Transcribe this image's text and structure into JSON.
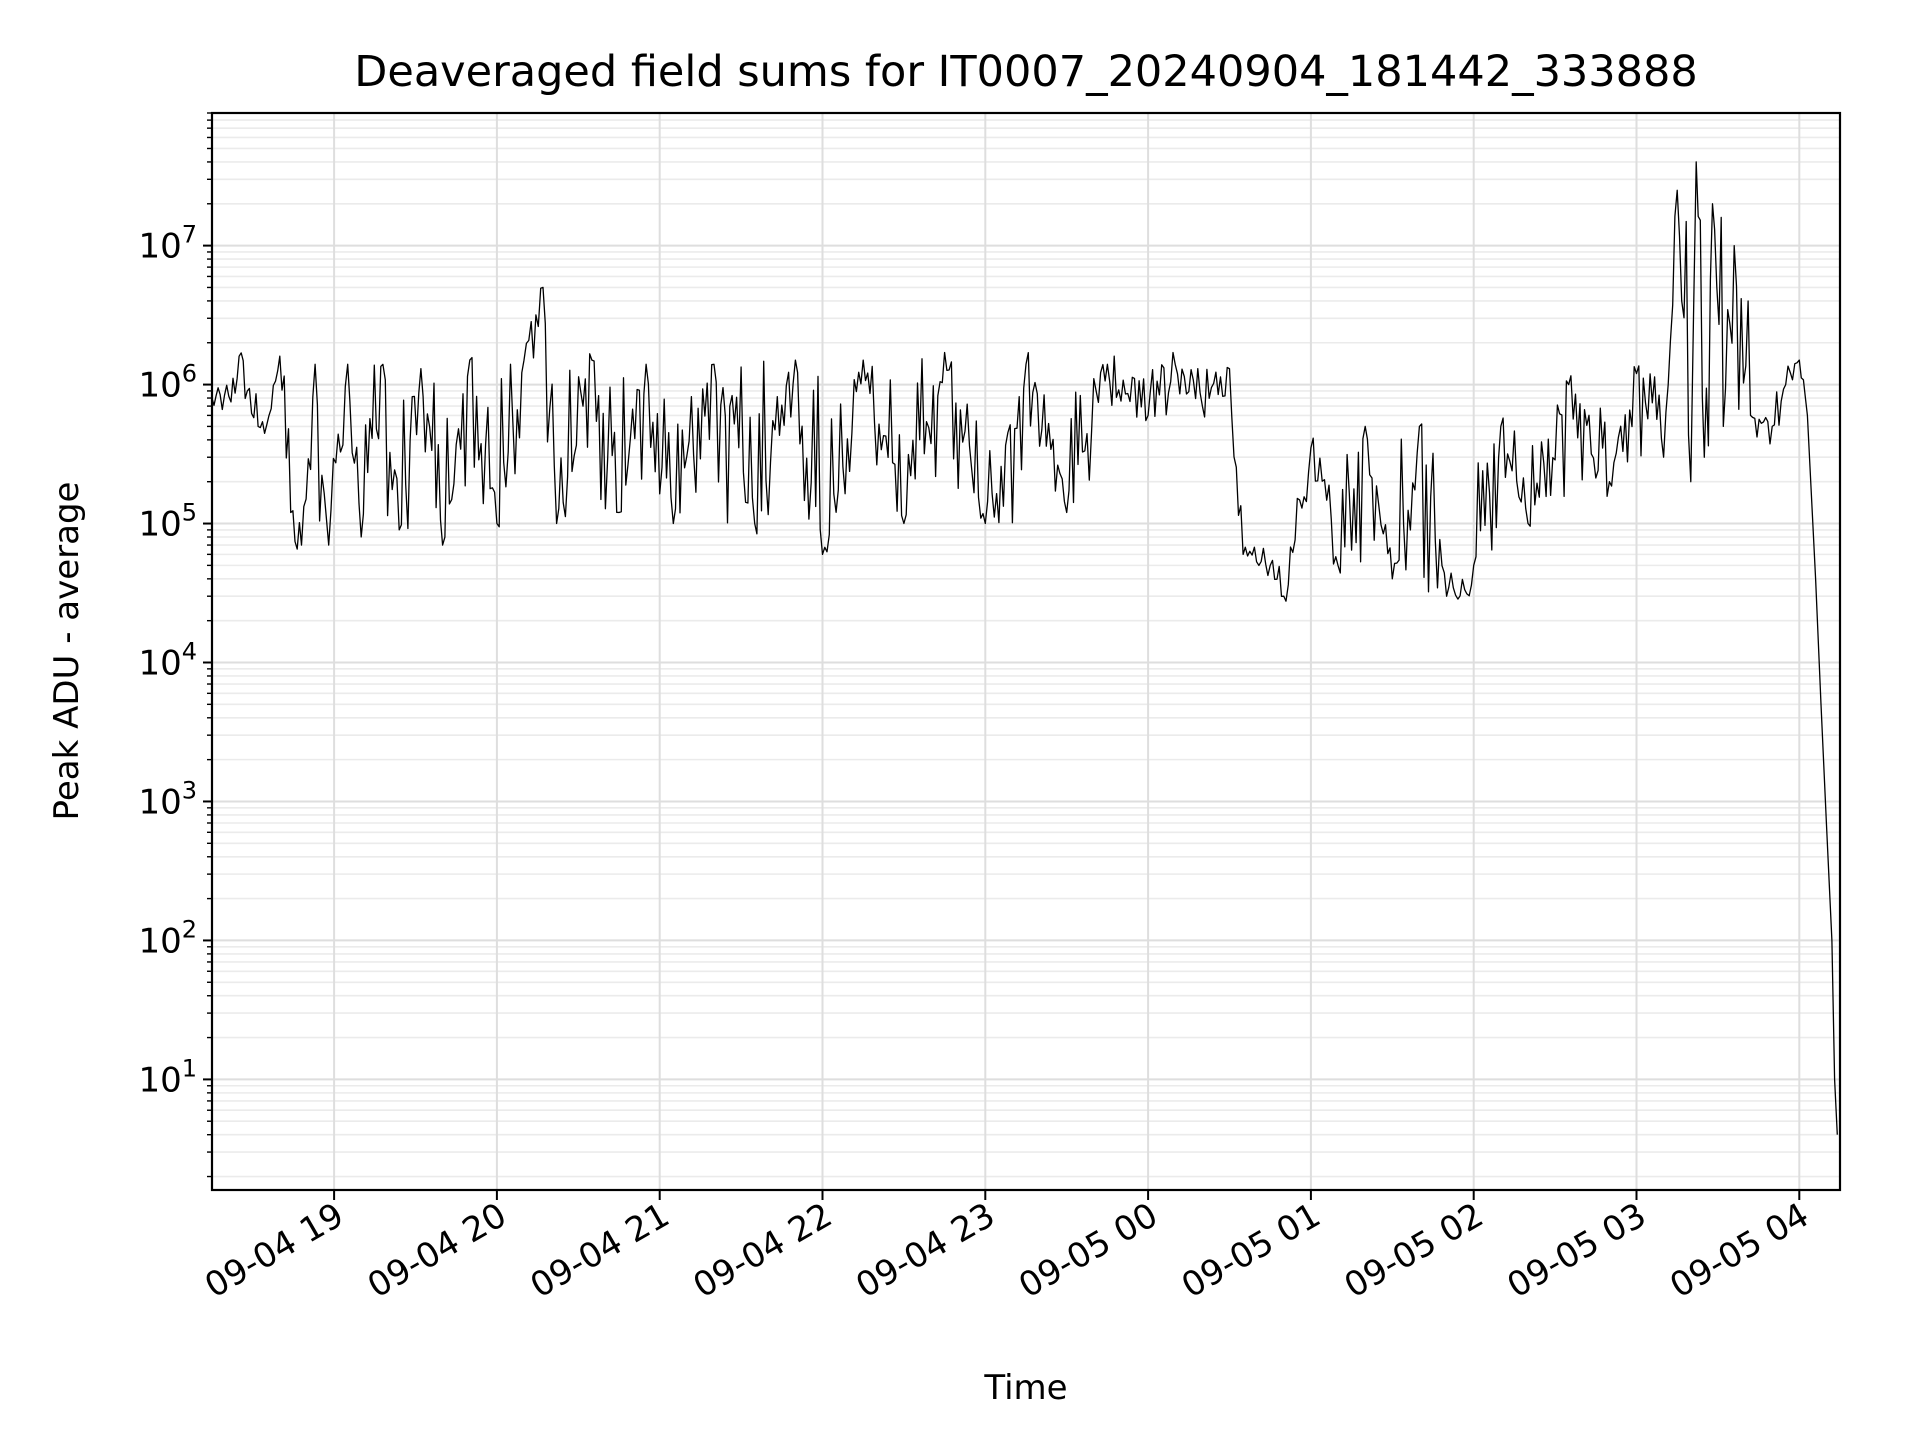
{
  "chart_data": {
    "type": "line",
    "title": "Deaveraged field sums for IT0007_20240904_181442_333888",
    "xlabel": "Time",
    "ylabel": "Peak ADU - average",
    "y_scale": "log",
    "xlim": [
      "2024-09-04 18:15",
      "2024-09-05 04:15"
    ],
    "ylim": [
      1.6,
      90000000.0
    ],
    "grid": "major and minor, light gray",
    "line_color": "#000000",
    "x_ticks": [
      "09-04 19",
      "09-04 20",
      "09-04 21",
      "09-04 22",
      "09-04 23",
      "09-05 00",
      "09-05 01",
      "09-05 02",
      "09-05 03",
      "09-05 04"
    ],
    "y_ticks": [
      {
        "value": 10,
        "base": "10",
        "exp": "1"
      },
      {
        "value": 100,
        "base": "10",
        "exp": "2"
      },
      {
        "value": 1000,
        "base": "10",
        "exp": "3"
      },
      {
        "value": 10000,
        "base": "10",
        "exp": "4"
      },
      {
        "value": 100000,
        "base": "10",
        "exp": "5"
      },
      {
        "value": 1000000,
        "base": "10",
        "exp": "6"
      },
      {
        "value": 10000000,
        "base": "10",
        "exp": "7"
      }
    ],
    "series": [
      {
        "points": [
          [
            "2024-09-04 18:15",
            800000
          ],
          [
            "2024-09-04 18:18",
            850000
          ],
          [
            "2024-09-04 18:22",
            750000
          ],
          [
            "2024-09-04 18:25",
            1600000
          ],
          [
            "2024-09-04 18:28",
            900000
          ],
          [
            "2024-09-04 18:32",
            500000
          ],
          [
            "2024-09-04 18:36",
            600000
          ],
          [
            "2024-09-04 18:40",
            1600000
          ],
          [
            "2024-09-04 18:44",
            120000
          ],
          [
            "2024-09-04 18:48",
            70000
          ],
          [
            "2024-09-04 18:53",
            1400000
          ],
          [
            "2024-09-04 18:58",
            70000
          ],
          [
            "2024-09-04 19:05",
            1400000
          ],
          [
            "2024-09-04 19:10",
            80000
          ],
          [
            "2024-09-04 19:18",
            1400000
          ],
          [
            "2024-09-04 19:24",
            90000
          ],
          [
            "2024-09-04 19:32",
            1300000
          ],
          [
            "2024-09-04 19:40",
            70000
          ],
          [
            "2024-09-04 19:50",
            1500000
          ],
          [
            "2024-09-04 20:00",
            100000
          ],
          [
            "2024-09-04 20:10",
            1500000
          ],
          [
            "2024-09-04 20:17",
            5000000
          ],
          [
            "2024-09-04 20:22",
            100000
          ],
          [
            "2024-09-04 20:35",
            1500000
          ],
          [
            "2024-09-04 20:45",
            120000
          ],
          [
            "2024-09-04 20:55",
            1400000
          ],
          [
            "2024-09-04 21:05",
            100000
          ],
          [
            "2024-09-04 21:20",
            1400000
          ],
          [
            "2024-09-04 21:35",
            100000
          ],
          [
            "2024-09-04 21:50",
            1500000
          ],
          [
            "2024-09-04 22:00",
            60000
          ],
          [
            "2024-09-04 22:15",
            1500000
          ],
          [
            "2024-09-04 22:30",
            100000
          ],
          [
            "2024-09-04 22:45",
            1700000
          ],
          [
            "2024-09-04 23:00",
            100000
          ],
          [
            "2024-09-04 23:15",
            1400000
          ],
          [
            "2024-09-04 23:30",
            120000
          ],
          [
            "2024-09-04 23:45",
            1400000
          ],
          [
            "2024-09-05 00:00",
            600000
          ],
          [
            "2024-09-05 00:10",
            1400000
          ],
          [
            "2024-09-05 00:20",
            700000
          ],
          [
            "2024-09-05 00:30",
            1300000
          ],
          [
            "2024-09-05 00:35",
            60000
          ],
          [
            "2024-09-05 00:45",
            50000
          ],
          [
            "2024-09-05 00:50",
            30000
          ],
          [
            "2024-09-05 01:00",
            350000
          ],
          [
            "2024-09-05 01:10",
            50000
          ],
          [
            "2024-09-05 01:20",
            500000
          ],
          [
            "2024-09-05 01:30",
            40000
          ],
          [
            "2024-09-05 01:40",
            500000
          ],
          [
            "2024-09-05 01:50",
            30000
          ],
          [
            "2024-09-05 02:00",
            50000
          ],
          [
            "2024-09-05 02:10",
            500000
          ],
          [
            "2024-09-05 02:20",
            100000
          ],
          [
            "2024-09-05 02:35",
            1000000
          ],
          [
            "2024-09-05 02:50",
            200000
          ],
          [
            "2024-09-05 03:00",
            1200000
          ],
          [
            "2024-09-05 03:10",
            300000
          ],
          [
            "2024-09-05 03:15",
            25000000
          ],
          [
            "2024-09-05 03:20",
            200000
          ],
          [
            "2024-09-05 03:22",
            40000000
          ],
          [
            "2024-09-05 03:25",
            300000
          ],
          [
            "2024-09-05 03:28",
            20000000
          ],
          [
            "2024-09-05 03:32",
            500000
          ],
          [
            "2024-09-05 03:36",
            10000000
          ],
          [
            "2024-09-05 03:42",
            600000
          ],
          [
            "2024-09-05 03:50",
            500000
          ],
          [
            "2024-09-05 03:55",
            1000000
          ],
          [
            "2024-09-05 04:00",
            1500000
          ],
          [
            "2024-09-05 04:03",
            600000
          ],
          [
            "2024-09-05 04:06",
            40000
          ],
          [
            "2024-09-05 04:08",
            5000
          ],
          [
            "2024-09-05 04:10",
            700
          ],
          [
            "2024-09-05 04:12",
            100
          ],
          [
            "2024-09-05 04:13",
            10
          ],
          [
            "2024-09-05 04:14",
            4
          ]
        ]
      }
    ]
  }
}
